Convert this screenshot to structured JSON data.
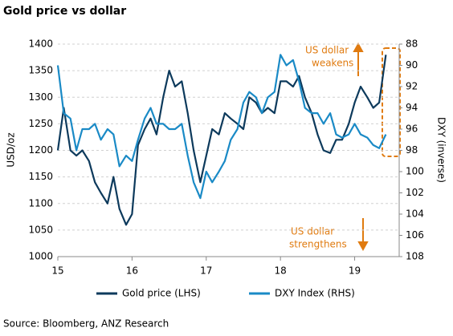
{
  "chart_data": {
    "type": "line",
    "title": "Gold price vs dollar",
    "y_label": "USD/oz",
    "y2_label": "DXY (inverse)",
    "source": "Source: Bloomberg, ANZ Research",
    "annotations": [
      {
        "lines": [
          "US dollar",
          "weakens"
        ],
        "color": "#e07b10"
      },
      {
        "lines": [
          "US dollar",
          "strengthens"
        ],
        "color": "#e07b10"
      }
    ],
    "x": [
      15,
      15.08,
      15.17,
      15.25,
      15.33,
      15.42,
      15.5,
      15.58,
      15.67,
      15.75,
      15.83,
      15.92,
      16,
      16.08,
      16.17,
      16.25,
      16.33,
      16.42,
      16.5,
      16.58,
      16.67,
      16.75,
      16.83,
      16.92,
      17,
      17.08,
      17.17,
      17.25,
      17.33,
      17.42,
      17.5,
      17.58,
      17.67,
      17.75,
      17.83,
      17.92,
      18,
      18.08,
      18.17,
      18.25,
      18.33,
      18.42,
      18.5,
      18.58,
      18.67,
      18.75,
      18.83,
      18.92,
      19,
      19.08,
      19.17,
      19.25,
      19.33,
      19.42
    ],
    "xlim": [
      15,
      19.6
    ],
    "xticks": [
      15,
      16,
      17,
      18,
      19
    ],
    "ylim": [
      1000,
      1400
    ],
    "yticks": [
      1000,
      1050,
      1100,
      1150,
      1200,
      1250,
      1300,
      1350,
      1400
    ],
    "y2lim": [
      108,
      88
    ],
    "y2ticks": [
      88,
      90,
      92,
      94,
      96,
      98,
      100,
      102,
      104,
      106,
      108
    ],
    "grid": true,
    "legend": "bottom",
    "series": [
      {
        "name": "Gold price (LHS)",
        "color": "#0d3a5c",
        "axis": "y",
        "values": [
          1200,
          1280,
          1200,
          1190,
          1200,
          1180,
          1140,
          1120,
          1100,
          1150,
          1090,
          1060,
          1080,
          1210,
          1240,
          1260,
          1230,
          1300,
          1350,
          1320,
          1330,
          1270,
          1200,
          1140,
          1190,
          1240,
          1230,
          1270,
          1260,
          1250,
          1240,
          1300,
          1290,
          1270,
          1280,
          1270,
          1330,
          1330,
          1320,
          1340,
          1300,
          1270,
          1230,
          1200,
          1195,
          1220,
          1220,
          1250,
          1290,
          1320,
          1300,
          1280,
          1290,
          1380
        ]
      },
      {
        "name": "DXY Index (RHS)",
        "color": "#1a8ac6",
        "axis": "y2",
        "values": [
          90,
          94.5,
          95,
          98,
          96,
          96,
          95.5,
          97,
          96,
          96.5,
          99.5,
          98.5,
          99,
          97,
          95,
          94,
          95.5,
          95.5,
          96,
          96,
          95.5,
          98.5,
          101,
          102.5,
          100,
          101,
          100,
          99,
          97,
          96,
          93.5,
          92.5,
          93,
          94.5,
          93,
          92.5,
          89,
          90,
          89.5,
          91.5,
          94,
          94.5,
          94.5,
          95.5,
          94.5,
          96.5,
          96.8,
          96.5,
          95.5,
          96.5,
          96.8,
          97.5,
          97.8,
          96.5
        ]
      }
    ]
  }
}
